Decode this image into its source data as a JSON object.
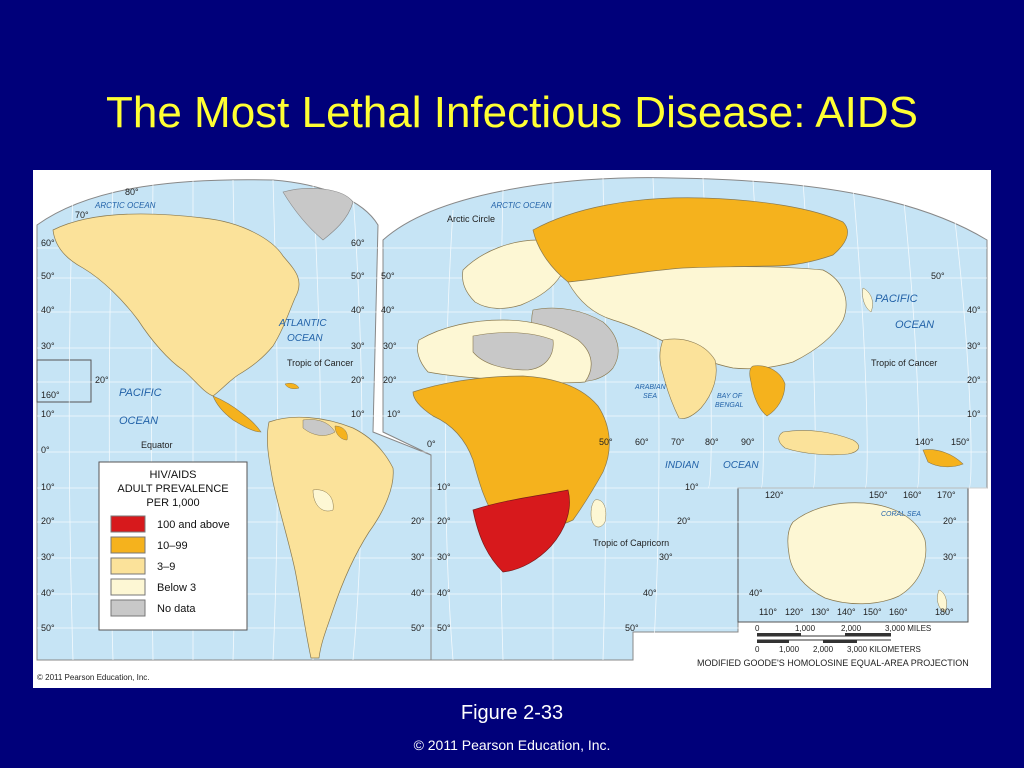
{
  "slide": {
    "title": "The Most Lethal Infectious Disease: AIDS",
    "figure": "Figure 2-33",
    "copyright": "© 2011 Pearson Education, Inc."
  },
  "map": {
    "map_copyright": "© 2011 Pearson Education, Inc.",
    "projection": "MODIFIED GOODE'S HOMOLOSINE EQUAL-AREA PROJECTION",
    "oceans": {
      "arctic_left": "ARCTIC OCEAN",
      "arctic_right": "ARCTIC OCEAN",
      "atlantic_1": "ATLANTIC",
      "atlantic_2": "OCEAN",
      "pacific_left_1": "PACIFIC",
      "pacific_left_2": "OCEAN",
      "pacific_right_1": "PACIFIC",
      "pacific_right_2": "OCEAN",
      "indian_1": "INDIAN",
      "indian_2": "OCEAN",
      "arabian_1": "ARABIAN",
      "arabian_2": "SEA",
      "bengal_1": "BAY OF",
      "bengal_2": "BENGAL",
      "coral": "CORAL SEA"
    },
    "lines": {
      "arctic_circle": "Arctic Circle",
      "tropic_cancer_left": "Tropic of Cancer",
      "tropic_cancer_right": "Tropic of Cancer",
      "equator": "Equator",
      "tropic_capricorn": "Tropic of Capricorn"
    },
    "degrees": {
      "n80": "80°",
      "n70": "70°",
      "n60a": "60°",
      "n60b": "60°",
      "n50a": "50°",
      "n50b": "50°",
      "n50c": "50°",
      "n50d": "50°",
      "n40a": "40°",
      "n40b": "40°",
      "n40c": "40°",
      "n40d": "40°",
      "n30a": "30°",
      "n30b": "30°",
      "n30c": "30°",
      "n30d": "30°",
      "n20a": "20°",
      "n20b": "20°",
      "n20c": "20°",
      "n20d": "20°",
      "n10a": "10°",
      "n10b": "10°",
      "n10c": "10°",
      "n10d": "10°",
      "eq0a": "0°",
      "eq0b": "0°",
      "w160": "160°",
      "s10a": "10°",
      "s10b": "10°",
      "s10c": "10°",
      "s20a": "20°",
      "s20b": "20°",
      "s20c": "20°",
      "s20d": "20°",
      "s20e": "20°",
      "s30a": "30°",
      "s30b": "30°",
      "s30c": "30°",
      "s30d": "30°",
      "s30e": "30°",
      "s40a": "40°",
      "s40b": "40°",
      "s40c": "40°",
      "s40d": "40°",
      "s40e": "40°",
      "s50a": "50°",
      "s50b": "50°",
      "s50c": "50°",
      "s50d": "50°",
      "e50": "50°",
      "e60": "60°",
      "e70": "70°",
      "e80": "80°",
      "e90": "90°",
      "e140": "140°",
      "e150": "150°",
      "i120": "120°",
      "i150": "150°",
      "i160": "160°",
      "i170": "170°",
      "b110": "110°",
      "b120": "120°",
      "b130": "130°",
      "b140": "140°",
      "b150": "150°",
      "b160": "160°",
      "b180": "180°"
    },
    "scale": {
      "miles": [
        "0",
        "1,000",
        "2,000",
        "3,000 MILES"
      ],
      "km": [
        "0",
        "1,000",
        "2,000",
        "3,000 KILOMETERS"
      ]
    }
  },
  "legend": {
    "title_1": "HIV/AIDS",
    "title_2": "ADULT PREVALENCE",
    "title_3": "PER 1,000",
    "items": [
      {
        "label": "100 and above",
        "color": "#d7191c"
      },
      {
        "label": "10–99",
        "color": "#f5b21d"
      },
      {
        "label": "3–9",
        "color": "#fbe29a"
      },
      {
        "label": "Below 3",
        "color": "#fdf7d4"
      },
      {
        "label": "No data",
        "color": "#c8c8c8"
      }
    ]
  },
  "colors": {
    "ocean": "#c6e4f5",
    "background": "#00007a",
    "title": "#ffff33"
  }
}
